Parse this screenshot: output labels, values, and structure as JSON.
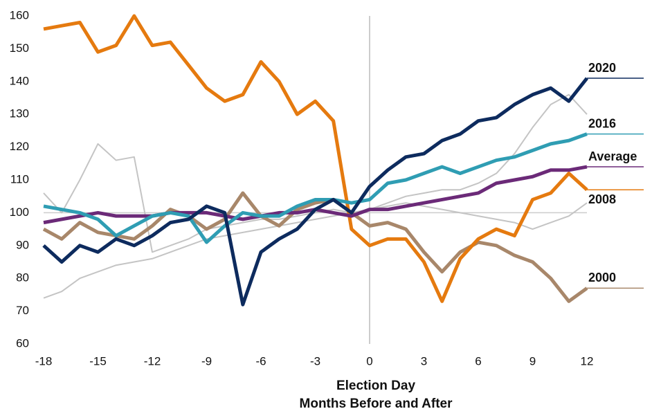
{
  "chart_data": {
    "type": "line",
    "xlabel": [
      "Election Day",
      "Months Before and After"
    ],
    "x": [
      -18,
      -17,
      -16,
      -15,
      -14,
      -13,
      -12,
      -11,
      -10,
      -9,
      -8,
      -7,
      -6,
      -5,
      -4,
      -3,
      -2,
      -1,
      0,
      1,
      2,
      3,
      4,
      5,
      6,
      7,
      8,
      9,
      10,
      11,
      12
    ],
    "series": [
      {
        "color": "#c4c4c4",
        "values": [
          106,
          100,
          110,
          121,
          116,
          117,
          88,
          90,
          92,
          95,
          96,
          97,
          98,
          98,
          99,
          100,
          101,
          100,
          101,
          103,
          105,
          106,
          107,
          107,
          109,
          112,
          118,
          126,
          133,
          136,
          130
        ]
      },
      {
        "color": "#c4c4c4",
        "values": [
          74,
          76,
          80,
          82,
          84,
          85,
          86,
          88,
          90,
          92,
          93,
          94,
          95,
          96,
          97,
          98,
          99,
          100,
          101,
          102,
          103,
          102,
          101,
          100,
          99,
          98,
          97,
          95,
          97,
          99,
          103
        ]
      },
      {
        "name": "2000",
        "color": "#a8876a",
        "values": [
          95,
          92,
          97,
          94,
          93,
          92,
          96,
          101,
          99,
          95,
          98,
          106,
          99,
          96,
          101,
          103,
          104,
          100,
          96,
          97,
          95,
          88,
          82,
          88,
          91,
          90,
          87,
          85,
          80,
          73,
          77
        ]
      },
      {
        "name": "2008",
        "color": "#e57a0f",
        "values": [
          156,
          157,
          158,
          149,
          151,
          160,
          151,
          152,
          145,
          138,
          134,
          136,
          146,
          140,
          130,
          134,
          128,
          95,
          90,
          92,
          92,
          85,
          73,
          86,
          92,
          95,
          93,
          104,
          106,
          112,
          107
        ]
      },
      {
        "name": "Average",
        "color": "#6b2a78",
        "values": [
          97,
          98,
          99,
          100,
          99,
          99,
          99,
          100,
          100,
          100,
          99,
          98,
          99,
          100,
          100,
          101,
          100,
          99,
          101,
          101,
          102,
          103,
          104,
          105,
          106,
          109,
          110,
          111,
          113,
          113,
          114
        ]
      },
      {
        "name": "2016",
        "color": "#2f9db3",
        "values": [
          102,
          101,
          100,
          98,
          93,
          96,
          99,
          100,
          99,
          91,
          96,
          100,
          99,
          99,
          102,
          104,
          104,
          103,
          104,
          109,
          110,
          112,
          114,
          112,
          114,
          116,
          117,
          119,
          121,
          122,
          124
        ]
      },
      {
        "name": "2020",
        "color": "#0d2b5e",
        "values": [
          90,
          85,
          90,
          88,
          92,
          90,
          93,
          97,
          98,
          102,
          100,
          72,
          88,
          92,
          95,
          101,
          104,
          100,
          108,
          113,
          117,
          118,
          122,
          124,
          128,
          129,
          133,
          136,
          138,
          134,
          141
        ]
      }
    ],
    "xlim": [
      -18,
      12
    ],
    "xticks": [
      -18,
      -15,
      -12,
      -9,
      -6,
      -3,
      0,
      3,
      6,
      9,
      12
    ],
    "ylim": [
      60,
      160
    ],
    "yticks": [
      60,
      70,
      80,
      90,
      100,
      110,
      120,
      130,
      140,
      150,
      160
    ],
    "reference_lines": {
      "x": 0,
      "y": 100
    }
  }
}
